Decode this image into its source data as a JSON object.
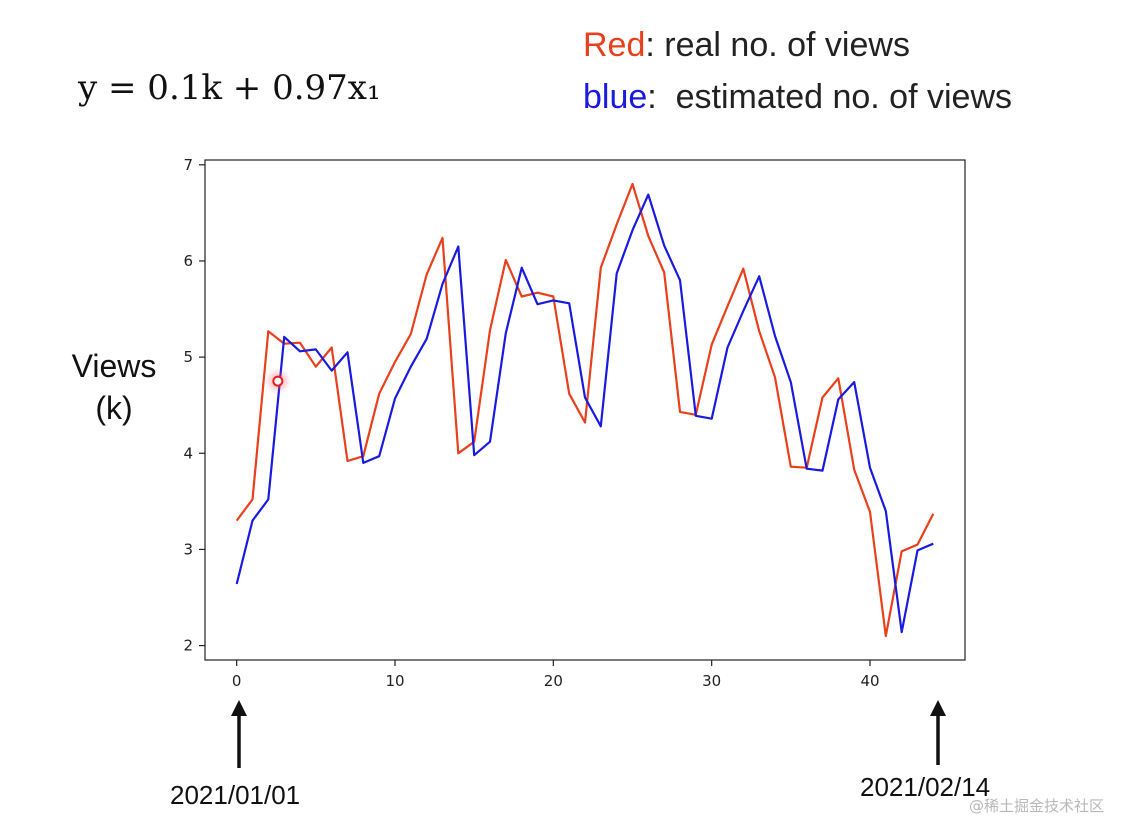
{
  "formula": "y = 0.1k + 0.97x₁",
  "legend": {
    "red_keyword": "Red",
    "red_text": ": real no. of views",
    "blue_keyword": "blue",
    "blue_text": ":  estimated no. of views"
  },
  "axis_label": {
    "line1": "Views",
    "line2": "(k)"
  },
  "date_start": "2021/01/01",
  "date_end": "2021/02/14",
  "watermark": "@稀土掘金技术社区",
  "colors": {
    "real": "#e8401c",
    "estimated": "#1a1adf",
    "text": "#111111"
  },
  "chart_data": {
    "type": "line",
    "xlim": [
      -2,
      46
    ],
    "ylim": [
      1.85,
      7.05
    ],
    "xticks": [
      0,
      10,
      20,
      30,
      40
    ],
    "yticks": [
      2,
      3,
      4,
      5,
      6,
      7
    ],
    "grid": false,
    "x": [
      0,
      1,
      2,
      3,
      4,
      5,
      6,
      7,
      8,
      9,
      10,
      11,
      12,
      13,
      14,
      15,
      16,
      17,
      18,
      19,
      20,
      21,
      22,
      23,
      24,
      25,
      26,
      27,
      28,
      29,
      30,
      31,
      32,
      33,
      34,
      35,
      36,
      37,
      38,
      39,
      40,
      41,
      42,
      43,
      44
    ],
    "series": [
      {
        "name": "Red",
        "color_key": "real",
        "values": [
          3.3,
          3.52,
          5.27,
          5.14,
          5.15,
          4.9,
          5.1,
          3.92,
          3.97,
          4.62,
          4.95,
          5.24,
          5.86,
          6.24,
          4.0,
          4.12,
          5.28,
          6.01,
          5.63,
          5.67,
          5.63,
          4.62,
          4.32,
          5.93,
          6.38,
          6.8,
          6.26,
          5.88,
          4.43,
          4.4,
          5.13,
          5.53,
          5.92,
          5.27,
          4.79,
          3.86,
          3.85,
          4.58,
          4.78,
          3.83,
          3.39,
          2.1,
          2.98,
          3.05,
          3.37
        ]
      },
      {
        "name": "blue",
        "color_key": "estimated",
        "values": [
          2.64,
          3.3,
          3.52,
          5.21,
          5.06,
          5.08,
          4.86,
          5.05,
          3.9,
          3.97,
          4.57,
          4.9,
          5.19,
          5.76,
          6.15,
          3.98,
          4.12,
          5.25,
          5.93,
          5.55,
          5.59,
          5.56,
          4.58,
          4.28,
          5.87,
          6.32,
          6.69,
          6.16,
          5.8,
          4.39,
          4.36,
          5.1,
          5.48,
          5.84,
          5.22,
          4.74,
          3.84,
          3.82,
          4.56,
          4.74,
          3.85,
          3.4,
          2.14,
          2.99,
          3.06
        ]
      }
    ],
    "annotation": {
      "cursor_marker": {
        "x": 2.6,
        "y": 4.75
      }
    }
  }
}
